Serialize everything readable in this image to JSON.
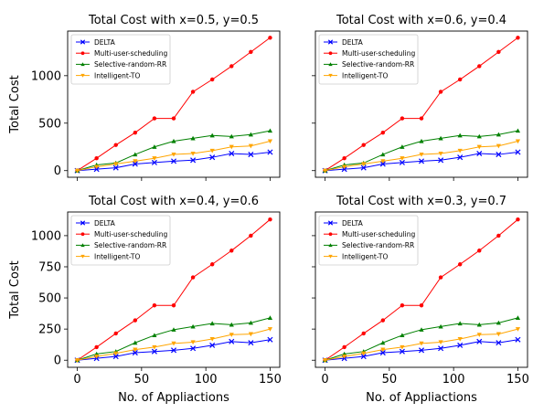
{
  "chart_data": [
    {
      "type": "line",
      "title": "Total Cost with x=0.5, y=0.5",
      "xlabel": "",
      "ylabel": "Total Cost",
      "show_x_tick_labels": false,
      "show_y_tick_labels": true,
      "x": [
        0,
        15,
        30,
        45,
        60,
        75,
        90,
        105,
        120,
        135,
        150
      ],
      "xlim": [
        -7.5,
        157.5
      ],
      "ylim": [
        -70,
        1470
      ],
      "xticks": [
        0,
        50,
        100,
        150
      ],
      "yticks": [
        0,
        500,
        1000
      ],
      "legend_position": "upper-left",
      "series": [
        {
          "name": "DELTA",
          "color": "#0000ff",
          "marker": "x",
          "values": [
            0,
            15,
            30,
            70,
            85,
            100,
            110,
            140,
            180,
            170,
            195
          ]
        },
        {
          "name": "Multi-user-scheduling",
          "color": "#ff0000",
          "marker": "o",
          "values": [
            0,
            130,
            270,
            400,
            550,
            550,
            830,
            960,
            1100,
            1250,
            1400
          ]
        },
        {
          "name": "Selective-random-RR",
          "color": "#008000",
          "marker": "^",
          "values": [
            0,
            60,
            80,
            170,
            250,
            310,
            340,
            370,
            360,
            380,
            420
          ]
        },
        {
          "name": "Intelligent-TO",
          "color": "#ffa500",
          "marker": "v",
          "values": [
            0,
            40,
            70,
            100,
            130,
            170,
            180,
            210,
            250,
            260,
            310
          ]
        }
      ]
    },
    {
      "type": "line",
      "title": "Total Cost with x=0.6, y=0.4",
      "xlabel": "",
      "ylabel": "",
      "show_x_tick_labels": false,
      "show_y_tick_labels": false,
      "x": [
        0,
        15,
        30,
        45,
        60,
        75,
        90,
        105,
        120,
        135,
        150
      ],
      "xlim": [
        -7.5,
        157.5
      ],
      "ylim": [
        -70,
        1470
      ],
      "xticks": [
        0,
        50,
        100,
        150
      ],
      "yticks": [
        0,
        500,
        1000
      ],
      "legend_position": "upper-left",
      "series": [
        {
          "name": "DELTA",
          "color": "#0000ff",
          "marker": "x",
          "values": [
            0,
            15,
            30,
            70,
            85,
            100,
            110,
            140,
            180,
            170,
            195
          ]
        },
        {
          "name": "Multi-user-scheduling",
          "color": "#ff0000",
          "marker": "o",
          "values": [
            0,
            130,
            270,
            400,
            550,
            550,
            830,
            960,
            1100,
            1250,
            1400
          ]
        },
        {
          "name": "Selective-random-RR",
          "color": "#008000",
          "marker": "^",
          "values": [
            0,
            60,
            80,
            170,
            250,
            310,
            340,
            370,
            360,
            380,
            420
          ]
        },
        {
          "name": "Intelligent-TO",
          "color": "#ffa500",
          "marker": "v",
          "values": [
            0,
            40,
            70,
            100,
            130,
            170,
            180,
            210,
            250,
            260,
            310
          ]
        }
      ]
    },
    {
      "type": "line",
      "title": "Total Cost with x=0.4, y=0.6",
      "xlabel": "No. of Appliactions",
      "ylabel": "Total Cost",
      "show_x_tick_labels": true,
      "show_y_tick_labels": true,
      "x": [
        0,
        15,
        30,
        45,
        60,
        75,
        90,
        105,
        120,
        135,
        150
      ],
      "xlim": [
        -7.5,
        157.5
      ],
      "ylim": [
        -57,
        1190
      ],
      "xticks": [
        0,
        50,
        100,
        150
      ],
      "yticks": [
        0,
        250,
        500,
        750,
        1000
      ],
      "legend_position": "upper-left",
      "series": [
        {
          "name": "DELTA",
          "color": "#0000ff",
          "marker": "x",
          "values": [
            0,
            15,
            30,
            60,
            70,
            80,
            95,
            120,
            150,
            140,
            165
          ]
        },
        {
          "name": "Multi-user-scheduling",
          "color": "#ff0000",
          "marker": "o",
          "values": [
            0,
            105,
            215,
            320,
            440,
            440,
            665,
            770,
            880,
            1000,
            1130
          ]
        },
        {
          "name": "Selective-random-RR",
          "color": "#008000",
          "marker": "^",
          "values": [
            0,
            50,
            70,
            140,
            200,
            245,
            270,
            295,
            285,
            300,
            340
          ]
        },
        {
          "name": "Intelligent-TO",
          "color": "#ffa500",
          "marker": "v",
          "values": [
            0,
            30,
            55,
            85,
            105,
            135,
            145,
            170,
            205,
            210,
            250
          ]
        }
      ]
    },
    {
      "type": "line",
      "title": "Total Cost with x=0.3, y=0.7",
      "xlabel": "No. of Appliactions",
      "ylabel": "",
      "show_x_tick_labels": true,
      "show_y_tick_labels": false,
      "x": [
        0,
        15,
        30,
        45,
        60,
        75,
        90,
        105,
        120,
        135,
        150
      ],
      "xlim": [
        -7.5,
        157.5
      ],
      "ylim": [
        -57,
        1190
      ],
      "xticks": [
        0,
        50,
        100,
        150
      ],
      "yticks": [
        0,
        250,
        500,
        750,
        1000
      ],
      "legend_position": "upper-left",
      "series": [
        {
          "name": "DELTA",
          "color": "#0000ff",
          "marker": "x",
          "values": [
            0,
            15,
            30,
            60,
            70,
            80,
            95,
            120,
            150,
            140,
            165
          ]
        },
        {
          "name": "Multi-user-scheduling",
          "color": "#ff0000",
          "marker": "o",
          "values": [
            0,
            105,
            215,
            320,
            440,
            440,
            665,
            770,
            880,
            1000,
            1130
          ]
        },
        {
          "name": "Selective-random-RR",
          "color": "#008000",
          "marker": "^",
          "values": [
            0,
            50,
            70,
            140,
            200,
            245,
            270,
            295,
            285,
            300,
            340
          ]
        },
        {
          "name": "Intelligent-TO",
          "color": "#ffa500",
          "marker": "v",
          "values": [
            0,
            30,
            55,
            85,
            105,
            135,
            145,
            170,
            205,
            210,
            250
          ]
        }
      ]
    }
  ]
}
